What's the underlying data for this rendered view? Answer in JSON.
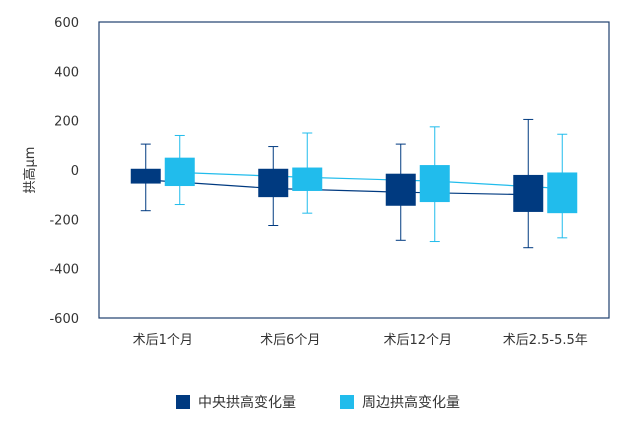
{
  "chart_data": {
    "type": "box",
    "ylabel": "拱高μm",
    "ylim": [
      -600,
      600
    ],
    "yticks": [
      600,
      400,
      200,
      0,
      -200,
      -400,
      -600
    ],
    "categories": [
      "术后1个月",
      "术后6个月",
      "术后12个月",
      "术后2.5-5.5年"
    ],
    "grid": false,
    "legend_position": "bottom",
    "series": [
      {
        "name": "中央拱高变化量",
        "color": "#003a80",
        "boxes": [
          {
            "min": -165,
            "q1": -55,
            "q3": 5,
            "max": 105,
            "mean": -40
          },
          {
            "min": -225,
            "q1": -110,
            "q3": 5,
            "max": 95,
            "mean": -75
          },
          {
            "min": -285,
            "q1": -145,
            "q3": -15,
            "max": 105,
            "mean": -90
          },
          {
            "min": -315,
            "q1": -170,
            "q3": -20,
            "max": 205,
            "mean": -100
          }
        ]
      },
      {
        "name": "周边拱高变化量",
        "color": "#21bcec",
        "boxes": [
          {
            "min": -140,
            "q1": -65,
            "q3": 50,
            "max": 140,
            "mean": -10
          },
          {
            "min": -175,
            "q1": -85,
            "q3": 10,
            "max": 150,
            "mean": -30
          },
          {
            "min": -290,
            "q1": -130,
            "q3": 20,
            "max": 175,
            "mean": -45
          },
          {
            "min": -275,
            "q1": -175,
            "q3": -10,
            "max": 145,
            "mean": -75
          }
        ]
      }
    ]
  }
}
